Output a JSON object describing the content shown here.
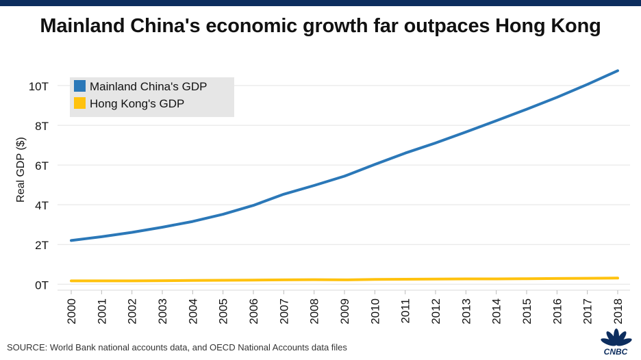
{
  "title": "Mainland China's economic growth far outpaces Hong Kong",
  "source": "SOURCE: World Bank national accounts data, and OECD National Accounts data files",
  "logo_text": "CNBC",
  "colors": {
    "header_bar": "#0c2d5e",
    "china": "#2b78b8",
    "hong_kong": "#ffc20e",
    "legend_bg": "#e6e6e6"
  },
  "chart_data": {
    "type": "line",
    "title": "Mainland China's economic growth far outpaces Hong Kong",
    "xlabel": "",
    "ylabel": "Real GDP ($)",
    "x": [
      "2000",
      "2001",
      "2002",
      "2003",
      "2004",
      "2005",
      "2006",
      "2007",
      "2008",
      "2009",
      "2010",
      "2011",
      "2012",
      "2013",
      "2014",
      "2015",
      "2016",
      "2017",
      "2018"
    ],
    "ylim": [
      -0.3,
      11
    ],
    "yticks": [
      0,
      2,
      4,
      6,
      8,
      10
    ],
    "ytick_labels": [
      "0T",
      "2T",
      "4T",
      "6T",
      "8T",
      "10T"
    ],
    "grid": true,
    "legend": "top-left",
    "series": [
      {
        "name": "Mainland China's GDP",
        "color": "#2b78b8",
        "values": [
          2.2,
          2.39,
          2.61,
          2.87,
          3.16,
          3.52,
          3.97,
          4.53,
          4.97,
          5.44,
          6.03,
          6.6,
          7.11,
          7.66,
          8.23,
          8.81,
          9.41,
          10.06,
          10.75
        ]
      },
      {
        "name": "Hong Kong's GDP",
        "color": "#ffc20e",
        "values": [
          0.17,
          0.17,
          0.17,
          0.18,
          0.19,
          0.2,
          0.21,
          0.22,
          0.23,
          0.22,
          0.24,
          0.25,
          0.26,
          0.27,
          0.27,
          0.28,
          0.29,
          0.3,
          0.31
        ]
      }
    ]
  }
}
